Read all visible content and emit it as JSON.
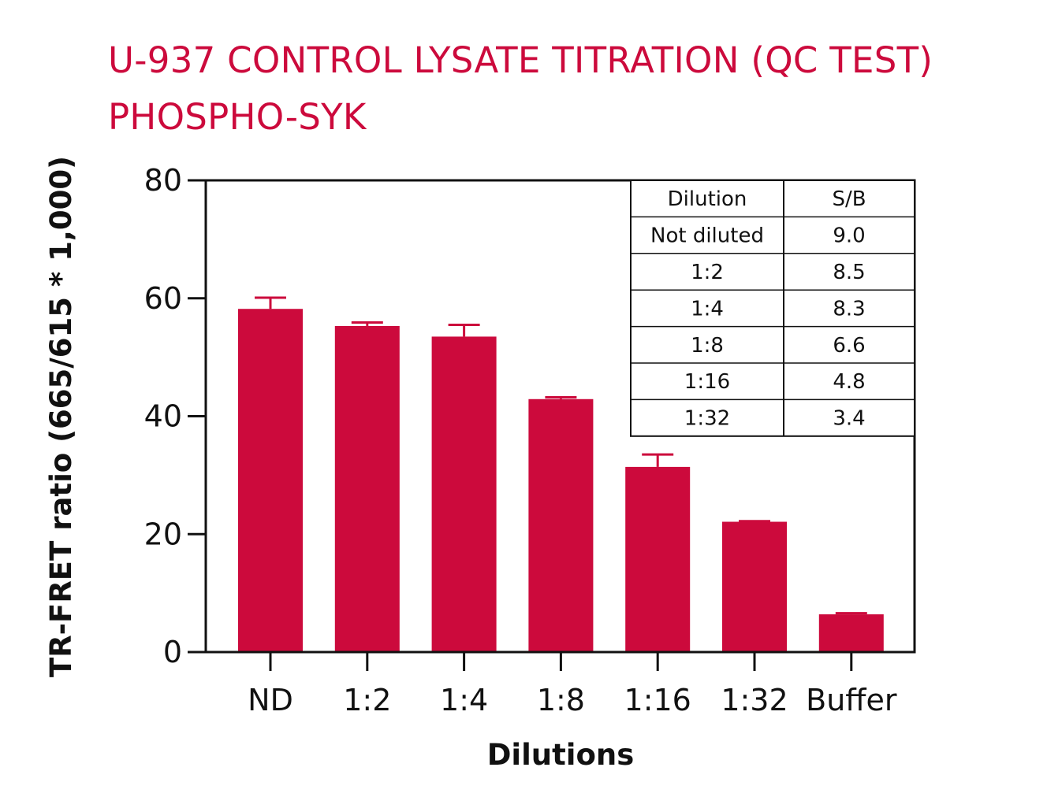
{
  "chart_data": {
    "type": "bar",
    "title": "U-937 CONTROL LYSATE TITRATION (QC TEST)",
    "subtitle": "PHOSPHO-SYK",
    "xlabel": "Dilutions",
    "ylabel": "TR-FRET ratio (665/615 * 1,000)",
    "ylim": [
      0,
      80
    ],
    "yticks": [
      0,
      20,
      40,
      60,
      80
    ],
    "categories": [
      "ND",
      "1:2",
      "1:4",
      "1:8",
      "1:16",
      "1:32",
      "Buffer"
    ],
    "values": [
      58.2,
      55.3,
      53.5,
      42.9,
      31.4,
      22.1,
      6.4
    ],
    "errors": [
      1.9,
      0.6,
      2.0,
      0.3,
      2.1,
      0.1,
      0.2
    ],
    "bar_color": "#cc0a3c",
    "grid": false,
    "inset_table": {
      "placement": "top-right",
      "header": [
        "Dilution",
        "S/B"
      ],
      "rows": [
        [
          "Not diluted",
          "9.0"
        ],
        [
          "1:2",
          "8.5"
        ],
        [
          "1:4",
          "8.3"
        ],
        [
          "1:8",
          "6.6"
        ],
        [
          "1:16",
          "4.8"
        ],
        [
          "1:32",
          "3.4"
        ]
      ]
    }
  }
}
